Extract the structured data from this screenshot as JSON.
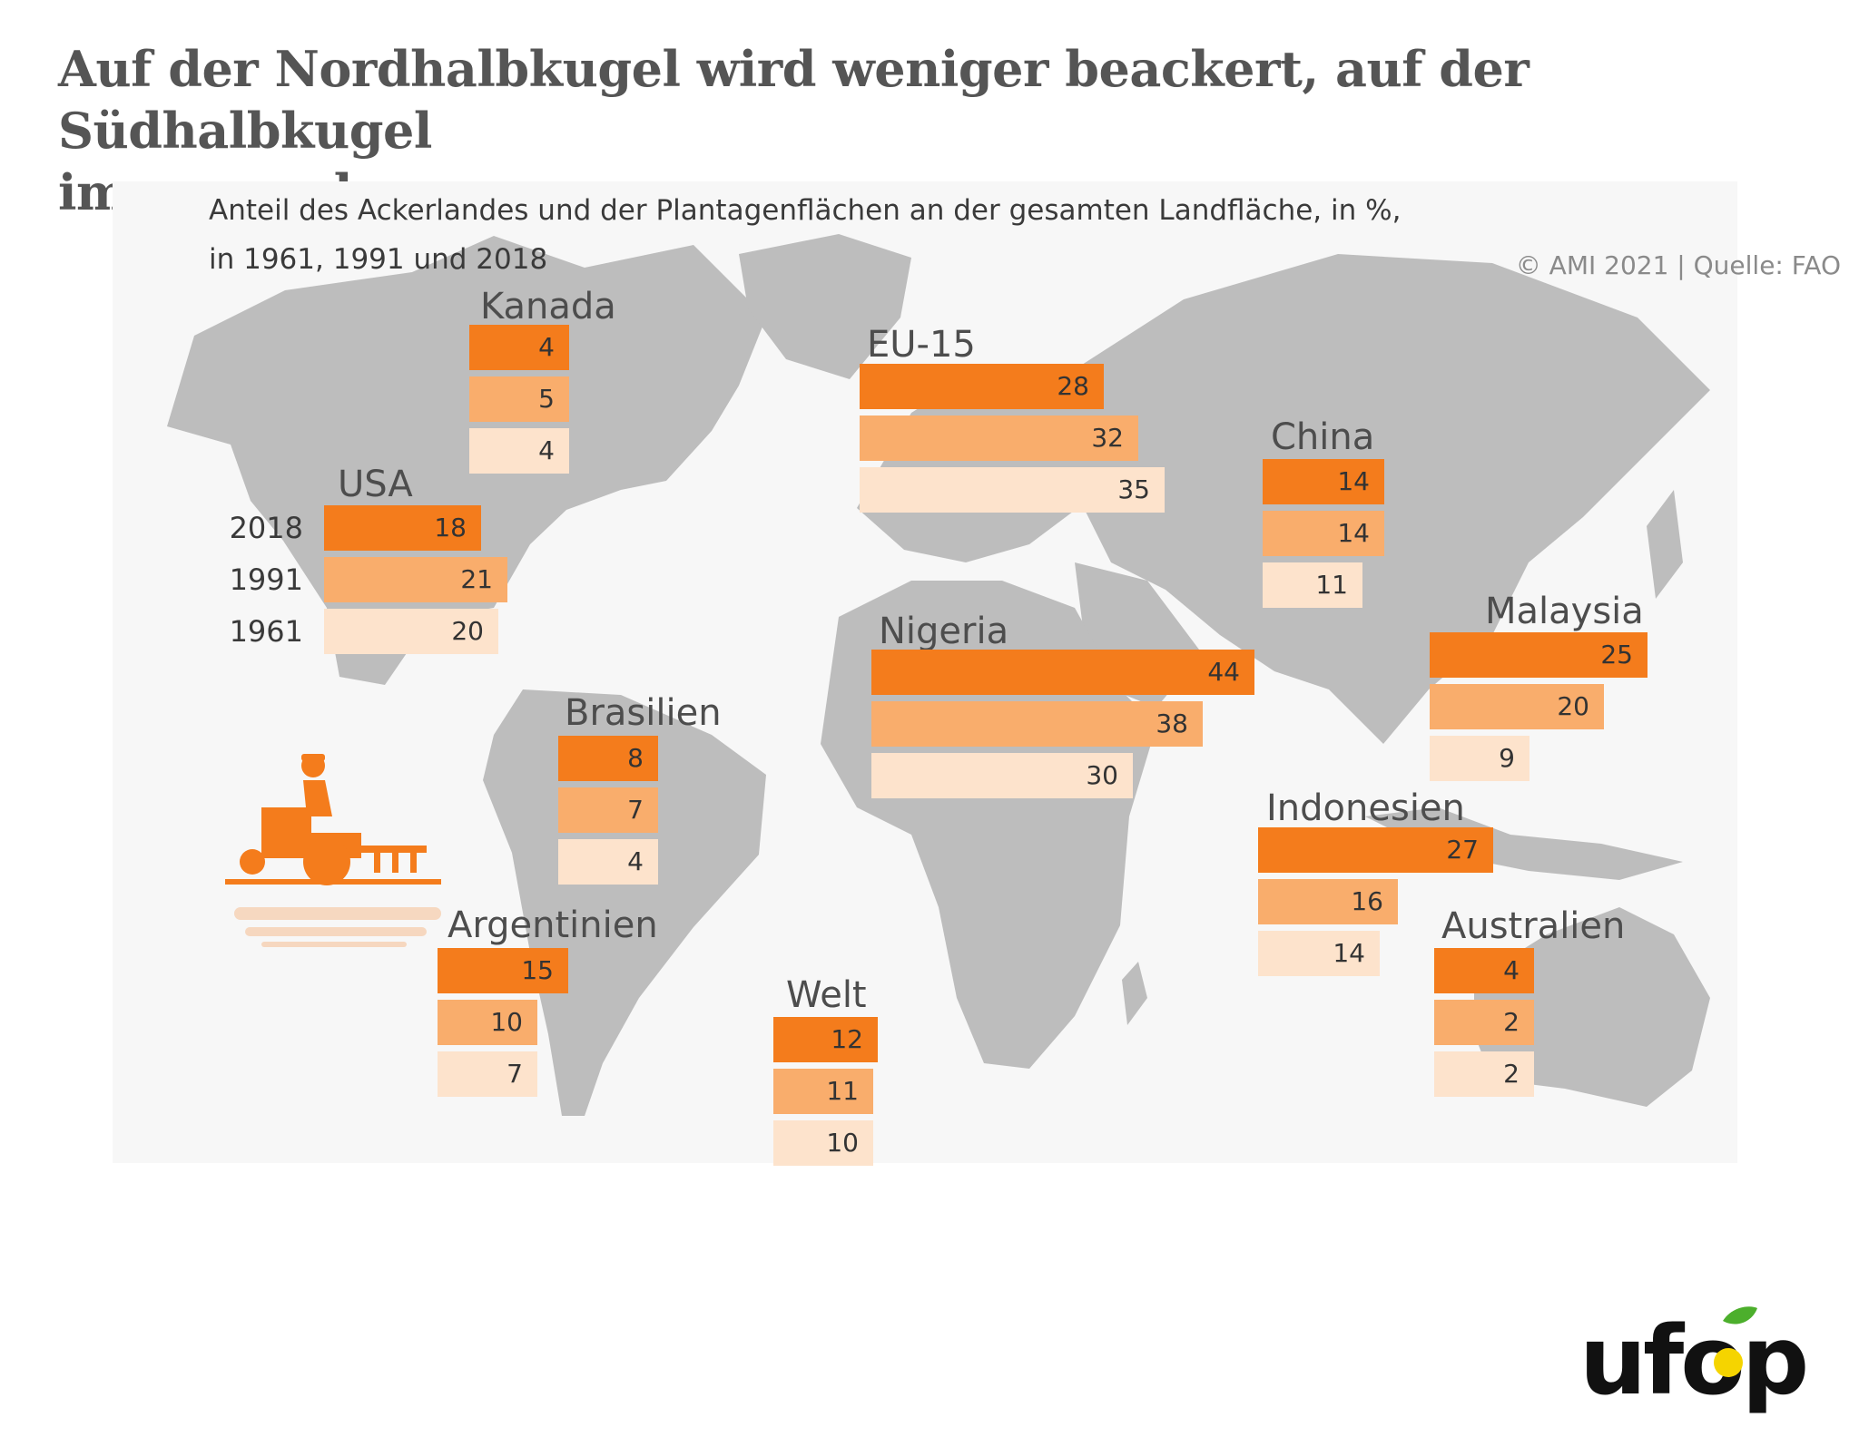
{
  "headline": {
    "line1": "Auf der Nordhalbkugel wird weniger beackert, auf der Südhalbkugel",
    "line2": "immer mehr"
  },
  "subtitle": {
    "line1": "Anteil des Ackerlandes und der Plantagenflächen an der gesamten Landfläche, in %,",
    "line2": "in 1961, 1991 und 2018"
  },
  "source": "© AMI 2021 | Quelle: FAO",
  "logo": {
    "text": "ufop"
  },
  "colors": {
    "y2018": "#f47c1c",
    "y1991": "#f9ad6c",
    "y1961": "#fde3cc",
    "map": "#bdbdbd"
  },
  "chart_data": {
    "type": "bar",
    "orientation": "horizontal",
    "title": "Auf der Nordhalbkugel wird weniger beackert, auf der Südhalbkugel immer mehr",
    "subtitle": "Anteil des Ackerlandes und der Plantagenflächen an der gesamten Landfläche, in %, in 1961, 1991 und 2018",
    "unit": "%",
    "year_labels": {
      "y2018": "2018",
      "y1991": "1991",
      "y1961": "1961"
    },
    "series": [
      {
        "name": "2018"
      },
      {
        "name": "1991"
      },
      {
        "name": "1961"
      }
    ],
    "countries": {
      "kanada": {
        "name": "Kanada",
        "values": {
          "y2018": 4,
          "y1991": 5,
          "y1961": 4
        }
      },
      "eu15": {
        "name": "EU-15",
        "values": {
          "y2018": 28,
          "y1991": 32,
          "y1961": 35
        }
      },
      "china": {
        "name": "China",
        "values": {
          "y2018": 14,
          "y1991": 14,
          "y1961": 11
        }
      },
      "usa": {
        "name": "USA",
        "values": {
          "y2018": 18,
          "y1991": 21,
          "y1961": 20
        }
      },
      "malaysia": {
        "name": "Malaysia",
        "values": {
          "y2018": 25,
          "y1991": 20,
          "y1961": 9
        }
      },
      "nigeria": {
        "name": "Nigeria",
        "values": {
          "y2018": 44,
          "y1991": 38,
          "y1961": 30
        }
      },
      "brasilien": {
        "name": "Brasilien",
        "values": {
          "y2018": 8,
          "y1991": 7,
          "y1961": 4
        }
      },
      "indonesien": {
        "name": "Indonesien",
        "values": {
          "y2018": 27,
          "y1991": 16,
          "y1961": 14
        }
      },
      "argentinien": {
        "name": "Argentinien",
        "values": {
          "y2018": 15,
          "y1991": 10,
          "y1961": 7
        }
      },
      "australien": {
        "name": "Australien",
        "values": {
          "y2018": 4,
          "y1991": 2,
          "y1961": 2
        }
      },
      "welt": {
        "name": "Welt",
        "values": {
          "y2018": 12,
          "y1991": 11,
          "y1961": 10
        }
      }
    }
  }
}
